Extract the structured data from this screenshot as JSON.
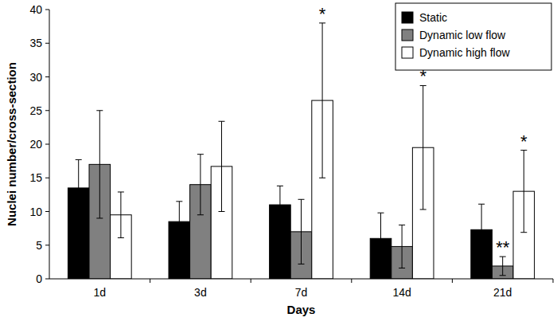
{
  "chart_data": {
    "type": "bar",
    "x_label": "Days",
    "y_label": "Nuclei number/cross-section",
    "categories": [
      "1d",
      "3d",
      "7d",
      "14d",
      "21d"
    ],
    "series": [
      {
        "name": "Static",
        "color": "#000000",
        "values": [
          13.5,
          8.5,
          11,
          6,
          7.3
        ],
        "error": [
          4.2,
          3,
          2.8,
          3.8,
          3.8
        ],
        "annotations": [
          null,
          null,
          null,
          null,
          null
        ]
      },
      {
        "name": "Dynamic low flow",
        "color": "#808080",
        "values": [
          17,
          14,
          7,
          4.8,
          1.9
        ],
        "error": [
          8,
          4.5,
          4.8,
          3.2,
          1.4
        ],
        "annotations": [
          null,
          null,
          null,
          null,
          "**"
        ]
      },
      {
        "name": "Dynamic high flow",
        "color": "#ffffff",
        "values": [
          9.5,
          16.7,
          26.5,
          19.5,
          13
        ],
        "error": [
          3.4,
          6.7,
          11.5,
          9.2,
          6.1
        ],
        "annotations": [
          null,
          null,
          "*",
          "*",
          "*"
        ]
      }
    ],
    "ylim": [
      0,
      40
    ],
    "yticks": [
      0,
      5,
      10,
      15,
      20,
      25,
      30,
      35,
      40
    ],
    "grid": false,
    "legend": "upper right"
  }
}
